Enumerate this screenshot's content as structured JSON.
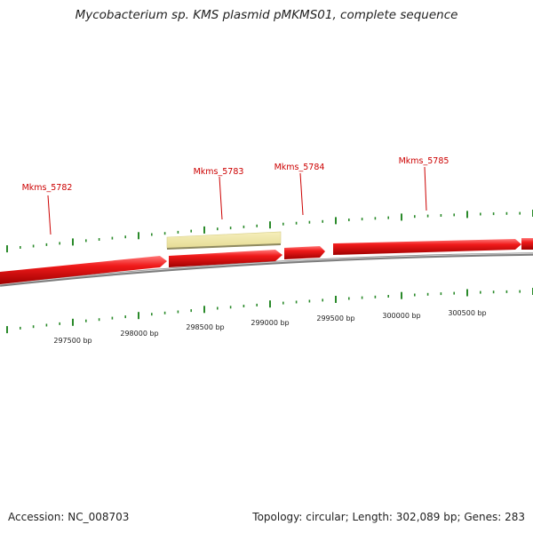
{
  "title": "Mycobacterium sp. KMS plasmid pMKMS01, complete sequence",
  "footer": {
    "accession": "Accession: NC_008703",
    "summary": "Topology: circular; Length: 302,089 bp; Genes: 283"
  },
  "colors": {
    "gene_fill": "#ee1111",
    "gene_label": "#cc0000",
    "highlight_fill": "#f0e8a8",
    "backbone": "#888888",
    "gc_tick": "#2a8a2a",
    "text": "#222222"
  },
  "genes": [
    {
      "label": "Mkms_5782"
    },
    {
      "label": "Mkms_5783"
    },
    {
      "label": "Mkms_5784"
    },
    {
      "label": "Mkms_5785"
    }
  ],
  "position_labels": [
    "297500 bp",
    "298000 bp",
    "298500 bp",
    "299000 bp",
    "299500 bp",
    "300000 bp",
    "300500 bp"
  ]
}
